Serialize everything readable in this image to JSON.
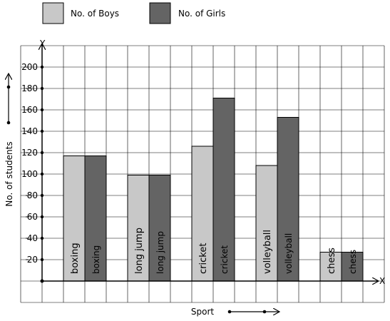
{
  "legend": {
    "boys": {
      "label": "No. of Boys",
      "color": "#c8c8c8"
    },
    "girls": {
      "label": "No. of Girls",
      "color": "#646464"
    }
  },
  "axes": {
    "x_letter": "X",
    "y_letter": "Y",
    "xlabel": "Sport",
    "ylabel": "No. of students"
  },
  "chart_data": {
    "type": "bar",
    "categories": [
      "boxing",
      "long jump",
      "cricket",
      "volleyball",
      "chess"
    ],
    "series": [
      {
        "name": "No. of Boys",
        "color": "#c8c8c8",
        "values": [
          117,
          99,
          126,
          108,
          27
        ]
      },
      {
        "name": "No. of Girls",
        "color": "#646464",
        "values": [
          117,
          99,
          171,
          153,
          27
        ]
      }
    ],
    "yticks": [
      "200",
      "180",
      "160",
      "140",
      "120",
      "100",
      "80",
      "60",
      "40",
      "20"
    ],
    "ylim": [
      0,
      200
    ],
    "grid": true,
    "legend_position": "top-left",
    "xlabel": "Sport",
    "ylabel": "No. of students"
  }
}
